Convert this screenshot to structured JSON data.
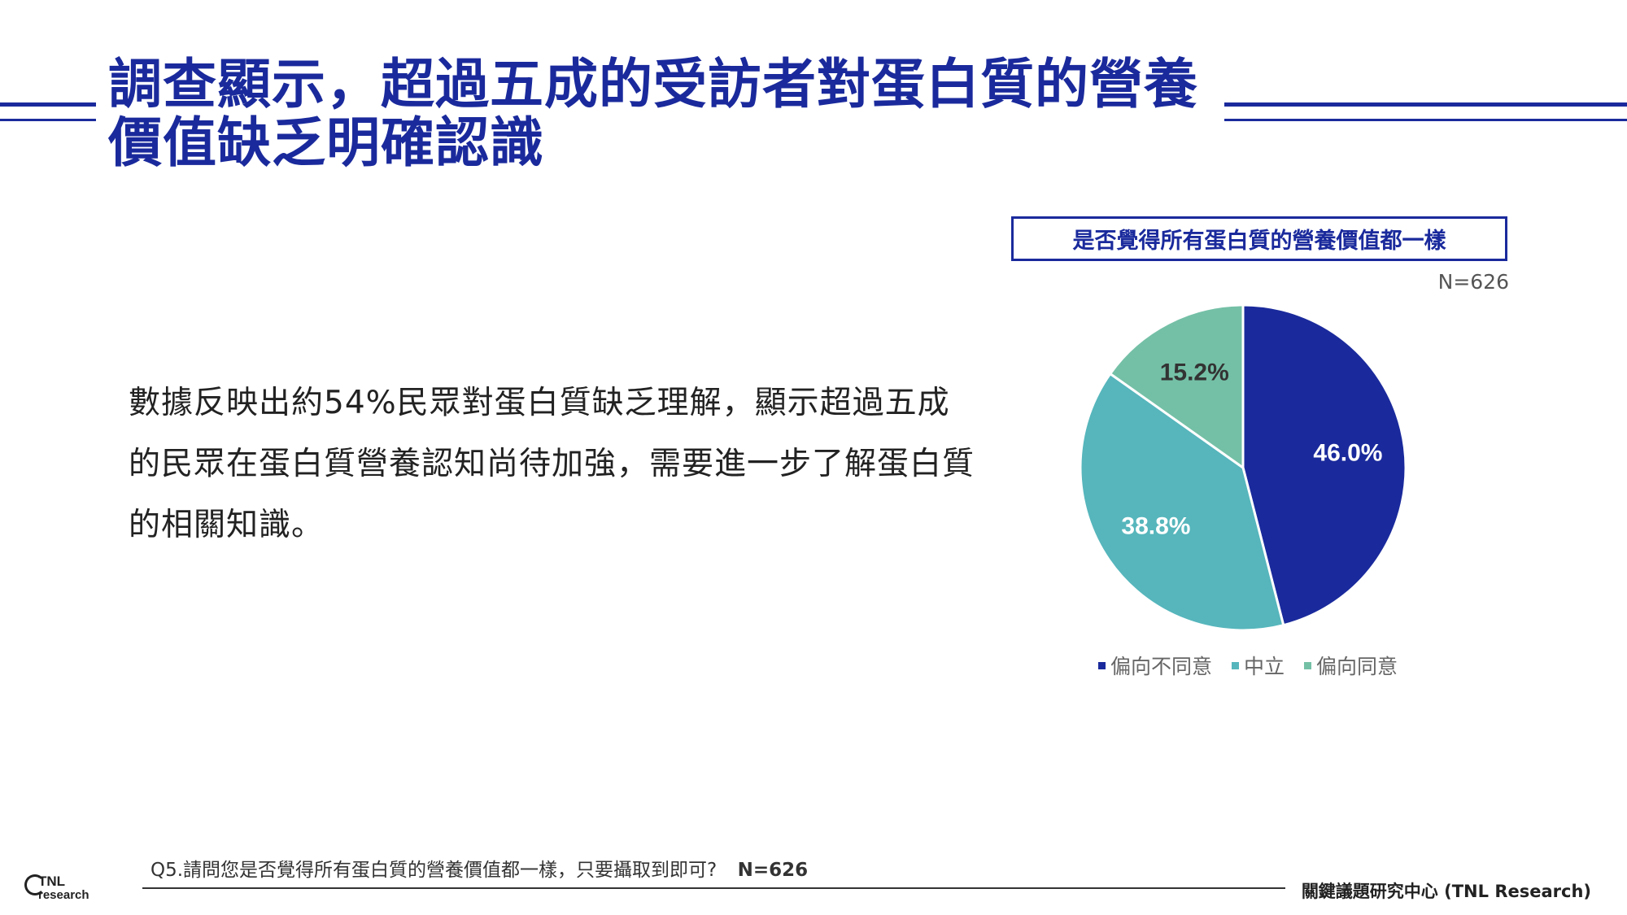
{
  "title": "調查顯示，超過五成的受訪者對蛋白質的營養價值缺乏明確認識",
  "body_text": "數據反映出約54%民眾對蛋白質缺乏理解，顯示超過五成的民眾在蛋白質營養認知尚待加強，需要進一步了解蛋白質的相關知識。",
  "chart_title": "是否覺得所有蛋白質的營養價值都一樣",
  "n_label": "N=626",
  "footnote": {
    "question": "Q5.請問您是否覺得所有蛋白質的營養價值都一樣，只要攝取到即可?",
    "n": "N=626"
  },
  "org": "關鍵議題研究中心 (TNL Research)",
  "logo": {
    "text_top": "TNL",
    "text_bottom": "research"
  },
  "colors": {
    "brand": "#1a2a9c",
    "series_disagree": "#1a2a9c",
    "series_neutral": "#56b6bc",
    "series_agree": "#74c0a6"
  },
  "chart_data": {
    "type": "pie",
    "title": "是否覺得所有蛋白質的營養價值都一樣",
    "categories": [
      "偏向不同意",
      "中立",
      "偏向同意"
    ],
    "values": [
      46.0,
      38.8,
      15.2
    ],
    "labels": [
      "46.0%",
      "38.8%",
      "15.2%"
    ],
    "colors": [
      "#1a2a9c",
      "#56b6bc",
      "#74c0a6"
    ],
    "label_colors": [
      "#ffffff",
      "#ffffff",
      "#333333"
    ],
    "start_angle_deg": 0,
    "direction": "clockwise",
    "legend_position": "bottom"
  }
}
